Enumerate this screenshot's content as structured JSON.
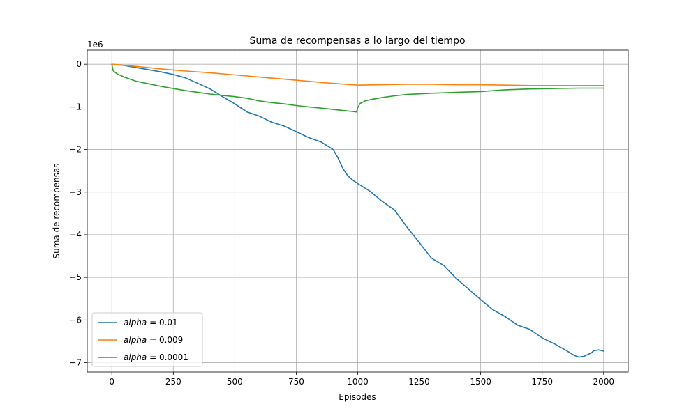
{
  "chart_data": {
    "type": "line",
    "title": "Suma de recompensas a lo largo del tiempo",
    "xlabel": "Episodes",
    "ylabel": "Suma de recompensas",
    "y_offset_label": "1e6",
    "xlim": [
      -100,
      2100
    ],
    "ylim": [
      -7.22,
      0.33
    ],
    "xticks": [
      0,
      250,
      500,
      750,
      1000,
      1250,
      1500,
      1750,
      2000
    ],
    "xtick_labels": [
      "0",
      "250",
      "500",
      "750",
      "1000",
      "1250",
      "1500",
      "1750",
      "2000"
    ],
    "yticks": [
      0,
      -1,
      -2,
      -3,
      -4,
      -5,
      -6,
      -7
    ],
    "ytick_labels": [
      "0",
      "−1",
      "−2",
      "−3",
      "−4",
      "−5",
      "−6",
      "−7"
    ],
    "grid": true,
    "legend_position": "lower-left",
    "series": [
      {
        "name": "alpha = 0.01",
        "legend_italic": "alpha",
        "legend_rest": " = 0.01",
        "color": "#1f77b4",
        "x": [
          0,
          50,
          100,
          150,
          200,
          250,
          300,
          350,
          400,
          450,
          500,
          550,
          600,
          650,
          700,
          750,
          800,
          850,
          900,
          920,
          940,
          960,
          980,
          1000,
          1050,
          1100,
          1150,
          1200,
          1250,
          1300,
          1350,
          1400,
          1450,
          1500,
          1550,
          1600,
          1650,
          1700,
          1750,
          1800,
          1850,
          1880,
          1900,
          1920,
          1950,
          1960,
          1980,
          2000
        ],
        "y": [
          0,
          -0.03,
          -0.08,
          -0.13,
          -0.18,
          -0.24,
          -0.32,
          -0.45,
          -0.58,
          -0.76,
          -0.93,
          -1.12,
          -1.22,
          -1.36,
          -1.45,
          -1.58,
          -1.72,
          -1.82,
          -2.0,
          -2.2,
          -2.45,
          -2.62,
          -2.72,
          -2.8,
          -2.98,
          -3.22,
          -3.42,
          -3.82,
          -4.18,
          -4.55,
          -4.72,
          -5.02,
          -5.27,
          -5.52,
          -5.76,
          -5.92,
          -6.12,
          -6.22,
          -6.42,
          -6.56,
          -6.72,
          -6.83,
          -6.87,
          -6.85,
          -6.77,
          -6.72,
          -6.7,
          -6.73
        ]
      },
      {
        "name": "alpha = 0.009",
        "legend_italic": "alpha",
        "legend_rest": " = 0.009",
        "color": "#ff7f0e",
        "x": [
          0,
          100,
          200,
          300,
          400,
          500,
          600,
          700,
          800,
          900,
          1000,
          1100,
          1200,
          1300,
          1400,
          1500,
          1600,
          1700,
          1800,
          1900,
          2000
        ],
        "y": [
          0,
          -0.05,
          -0.11,
          -0.16,
          -0.2,
          -0.25,
          -0.3,
          -0.35,
          -0.4,
          -0.45,
          -0.49,
          -0.48,
          -0.47,
          -0.47,
          -0.48,
          -0.48,
          -0.49,
          -0.5,
          -0.5,
          -0.5,
          -0.5
        ]
      },
      {
        "name": "alpha = 0.0001",
        "legend_italic": "alpha",
        "legend_rest": " = 0.0001",
        "color": "#2ca02c",
        "x": [
          0,
          5,
          20,
          50,
          100,
          150,
          200,
          250,
          300,
          350,
          400,
          450,
          500,
          550,
          600,
          650,
          700,
          750,
          800,
          850,
          900,
          950,
          995,
          1000,
          1010,
          1030,
          1060,
          1100,
          1150,
          1200,
          1300,
          1400,
          1500,
          1600,
          1700,
          1800,
          1900,
          2000
        ],
        "y": [
          0,
          -0.15,
          -0.22,
          -0.3,
          -0.4,
          -0.46,
          -0.52,
          -0.57,
          -0.62,
          -0.66,
          -0.7,
          -0.73,
          -0.76,
          -0.8,
          -0.86,
          -0.9,
          -0.93,
          -0.97,
          -1.0,
          -1.03,
          -1.06,
          -1.09,
          -1.12,
          -1.02,
          -0.92,
          -0.86,
          -0.82,
          -0.78,
          -0.74,
          -0.71,
          -0.68,
          -0.66,
          -0.64,
          -0.6,
          -0.58,
          -0.57,
          -0.56,
          -0.56
        ]
      }
    ]
  }
}
